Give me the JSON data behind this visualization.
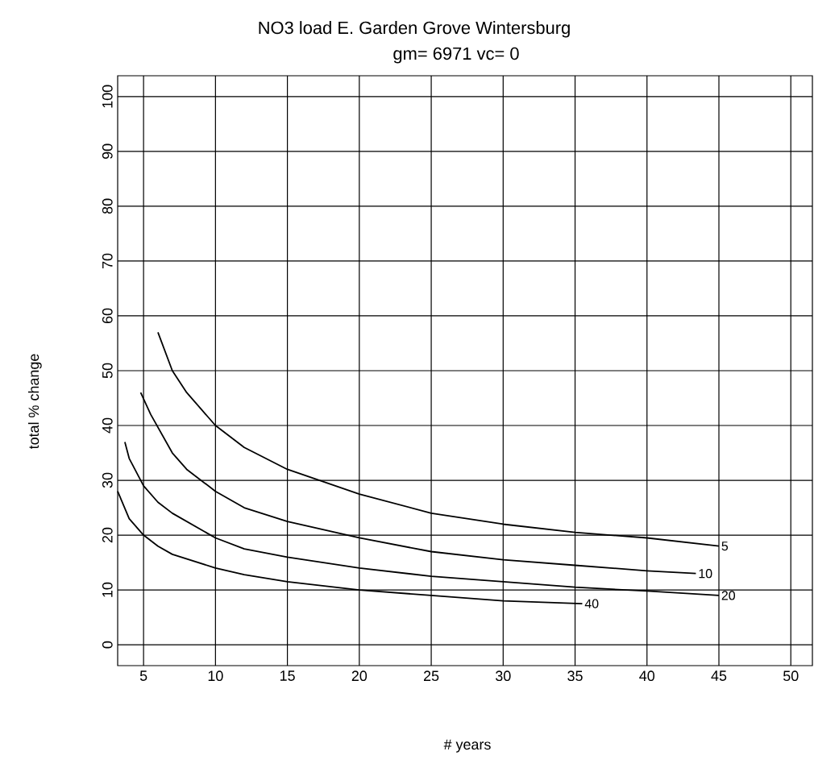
{
  "chart_data": {
    "type": "line",
    "title": "NO3 load E. Garden Grove Wintersburg",
    "subtitle": "gm= 6971 vc= 0",
    "xlabel": "# years",
    "ylabel": "total % change",
    "xlim": [
      3.2,
      51.5
    ],
    "ylim": [
      -3.8,
      103.8
    ],
    "xticks": [
      5,
      10,
      15,
      20,
      25,
      30,
      35,
      40,
      45,
      50
    ],
    "yticks": [
      0,
      10,
      20,
      30,
      40,
      50,
      60,
      70,
      80,
      90,
      100
    ],
    "grid": true,
    "series": [
      {
        "name": "5",
        "color": "#000000",
        "x": [
          6,
          7,
          8,
          10,
          12,
          15,
          20,
          25,
          30,
          35,
          40,
          45
        ],
        "values": [
          57,
          50,
          46,
          40,
          36,
          32,
          27.5,
          24,
          22,
          20.5,
          19.5,
          18
        ]
      },
      {
        "name": "10",
        "color": "#000000",
        "x": [
          4.8,
          5.5,
          7,
          8,
          10,
          12,
          15,
          20,
          25,
          30,
          35,
          40,
          43.4
        ],
        "values": [
          46,
          42,
          35,
          32,
          28,
          25,
          22.5,
          19.5,
          17,
          15.5,
          14.5,
          13.5,
          13
        ]
      },
      {
        "name": "20",
        "color": "#000000",
        "x": [
          3.7,
          4,
          5,
          6,
          7,
          10,
          12,
          15,
          20,
          25,
          30,
          35,
          40,
          45
        ],
        "values": [
          37,
          34,
          29,
          26,
          24,
          19.5,
          17.5,
          16,
          14,
          12.5,
          11.5,
          10.5,
          9.8,
          9
        ]
      },
      {
        "name": "40",
        "color": "#000000",
        "x": [
          3.2,
          4,
          5,
          6,
          7,
          10,
          12,
          15,
          20,
          25,
          30,
          35.5
        ],
        "values": [
          28,
          23,
          20,
          18,
          16.5,
          14,
          12.8,
          11.5,
          10,
          9,
          8,
          7.5
        ]
      }
    ]
  }
}
